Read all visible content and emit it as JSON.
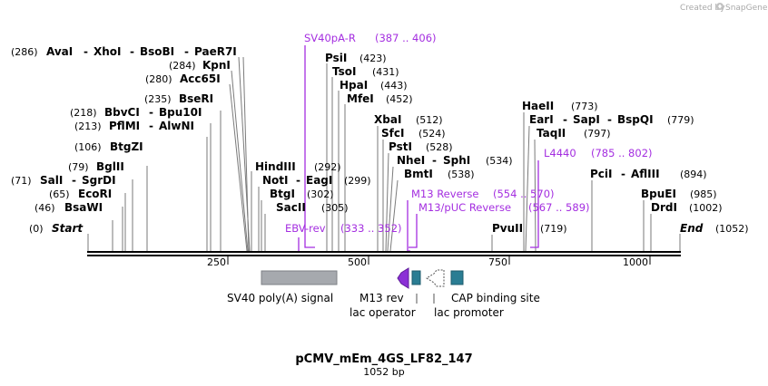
{
  "credit": {
    "text": "Created by",
    "brand": "SnapGene"
  },
  "plasmid": {
    "name": "pCMV_mEm_4GS_LF82_147",
    "length_label": "1052 bp"
  },
  "ends": {
    "start": {
      "pos": "(0)",
      "label": "Start"
    },
    "end": {
      "label": "End",
      "pos": "(1052)"
    }
  },
  "axis_ticks": [
    "250",
    "500",
    "750",
    "1000"
  ],
  "enzymes": {
    "avai": {
      "pos": "(286)",
      "name": "AvaI"
    },
    "xhoi": {
      "name": "XhoI"
    },
    "bsobi": {
      "name": "BsoBI"
    },
    "paer7i": {
      "name": "PaeR7I"
    },
    "kpni": {
      "pos": "(284)",
      "name": "KpnI"
    },
    "acc65i": {
      "pos": "(280)",
      "name": "Acc65I"
    },
    "bseri": {
      "pos": "(235)",
      "name": "BseRI"
    },
    "bbvci": {
      "pos": "(218)",
      "name": "BbvCI"
    },
    "bpu10i": {
      "name": "Bpu10I"
    },
    "pfimi": {
      "pos": "(213)",
      "name": "PflMI"
    },
    "alwni": {
      "name": "AlwNI"
    },
    "btgzi": {
      "pos": "(106)",
      "name": "BtgZI"
    },
    "bglii": {
      "pos": "(79)",
      "name": "BglII"
    },
    "sali": {
      "pos": "(71)",
      "name": "SalI"
    },
    "sgrdi": {
      "name": "SgrDI"
    },
    "ecori": {
      "pos": "(65)",
      "name": "EcoRI"
    },
    "bsawi": {
      "pos": "(46)",
      "name": "BsaWI"
    },
    "psii": {
      "name": "PsiI",
      "pos": "(423)"
    },
    "tsoi": {
      "name": "TsoI",
      "pos": "(431)"
    },
    "hpai": {
      "name": "HpaI",
      "pos": "(443)"
    },
    "mfei": {
      "name": "MfeI",
      "pos": "(452)"
    },
    "hindiii": {
      "name": "HindIII",
      "pos": "(292)"
    },
    "noti": {
      "name": "NotI"
    },
    "eagi": {
      "name": "EagI",
      "pos": "(299)"
    },
    "btgi": {
      "name": "BtgI",
      "pos": "(302)"
    },
    "sacii": {
      "name": "SacII",
      "pos": "(305)"
    },
    "xbai": {
      "name": "XbaI",
      "pos": "(512)"
    },
    "sfci": {
      "name": "SfcI",
      "pos": "(524)"
    },
    "psti": {
      "name": "PstI",
      "pos": "(528)"
    },
    "nhei": {
      "name": "NheI"
    },
    "sphi": {
      "name": "SphI",
      "pos": "(534)"
    },
    "bmti": {
      "name": "BmtI",
      "pos": "(538)"
    },
    "haeii": {
      "name": "HaeII",
      "pos": "(773)"
    },
    "eari": {
      "name": "EarI"
    },
    "sapi": {
      "name": "SapI"
    },
    "bspqi": {
      "name": "BspQI",
      "pos": "(779)"
    },
    "taqii": {
      "name": "TaqII",
      "pos": "(797)"
    },
    "pvuii": {
      "name": "PvuII",
      "pos": "(719)"
    },
    "pcii": {
      "name": "PciI"
    },
    "afliii": {
      "name": "AflIII",
      "pos": "(894)"
    },
    "bpuei": {
      "name": "BpuEI",
      "pos": "(985)"
    },
    "drdi": {
      "name": "DrdI",
      "pos": "(1002)"
    }
  },
  "primers": {
    "sv40pa_r": {
      "name": "SV40pA-R",
      "range": "(387 .. 406)"
    },
    "ebv_rev": {
      "name": "EBV-rev",
      "range": "(333 .. 352)"
    },
    "m13_rev": {
      "name": "M13 Reverse",
      "range": "(554 .. 570)"
    },
    "m13_puc_rev": {
      "name": "M13/pUC Reverse",
      "range": "(567 .. 589)"
    },
    "l4440": {
      "name": "L4440",
      "range": "(785 .. 802)"
    }
  },
  "features": {
    "sv40_polya": "SV40 poly(A) signal",
    "m13_rev": "M13 rev",
    "lac_operator": "lac operator",
    "lac_promoter": "lac promoter",
    "cap_site": "CAP binding site"
  },
  "colors": {
    "primer": "#a42ee0",
    "m13_arrow": "#8b2fd6",
    "operator_box": "#2a7d93",
    "polya_box": "#a6a9ae",
    "promoter_outline": "#555555",
    "backbone": "#000000"
  }
}
